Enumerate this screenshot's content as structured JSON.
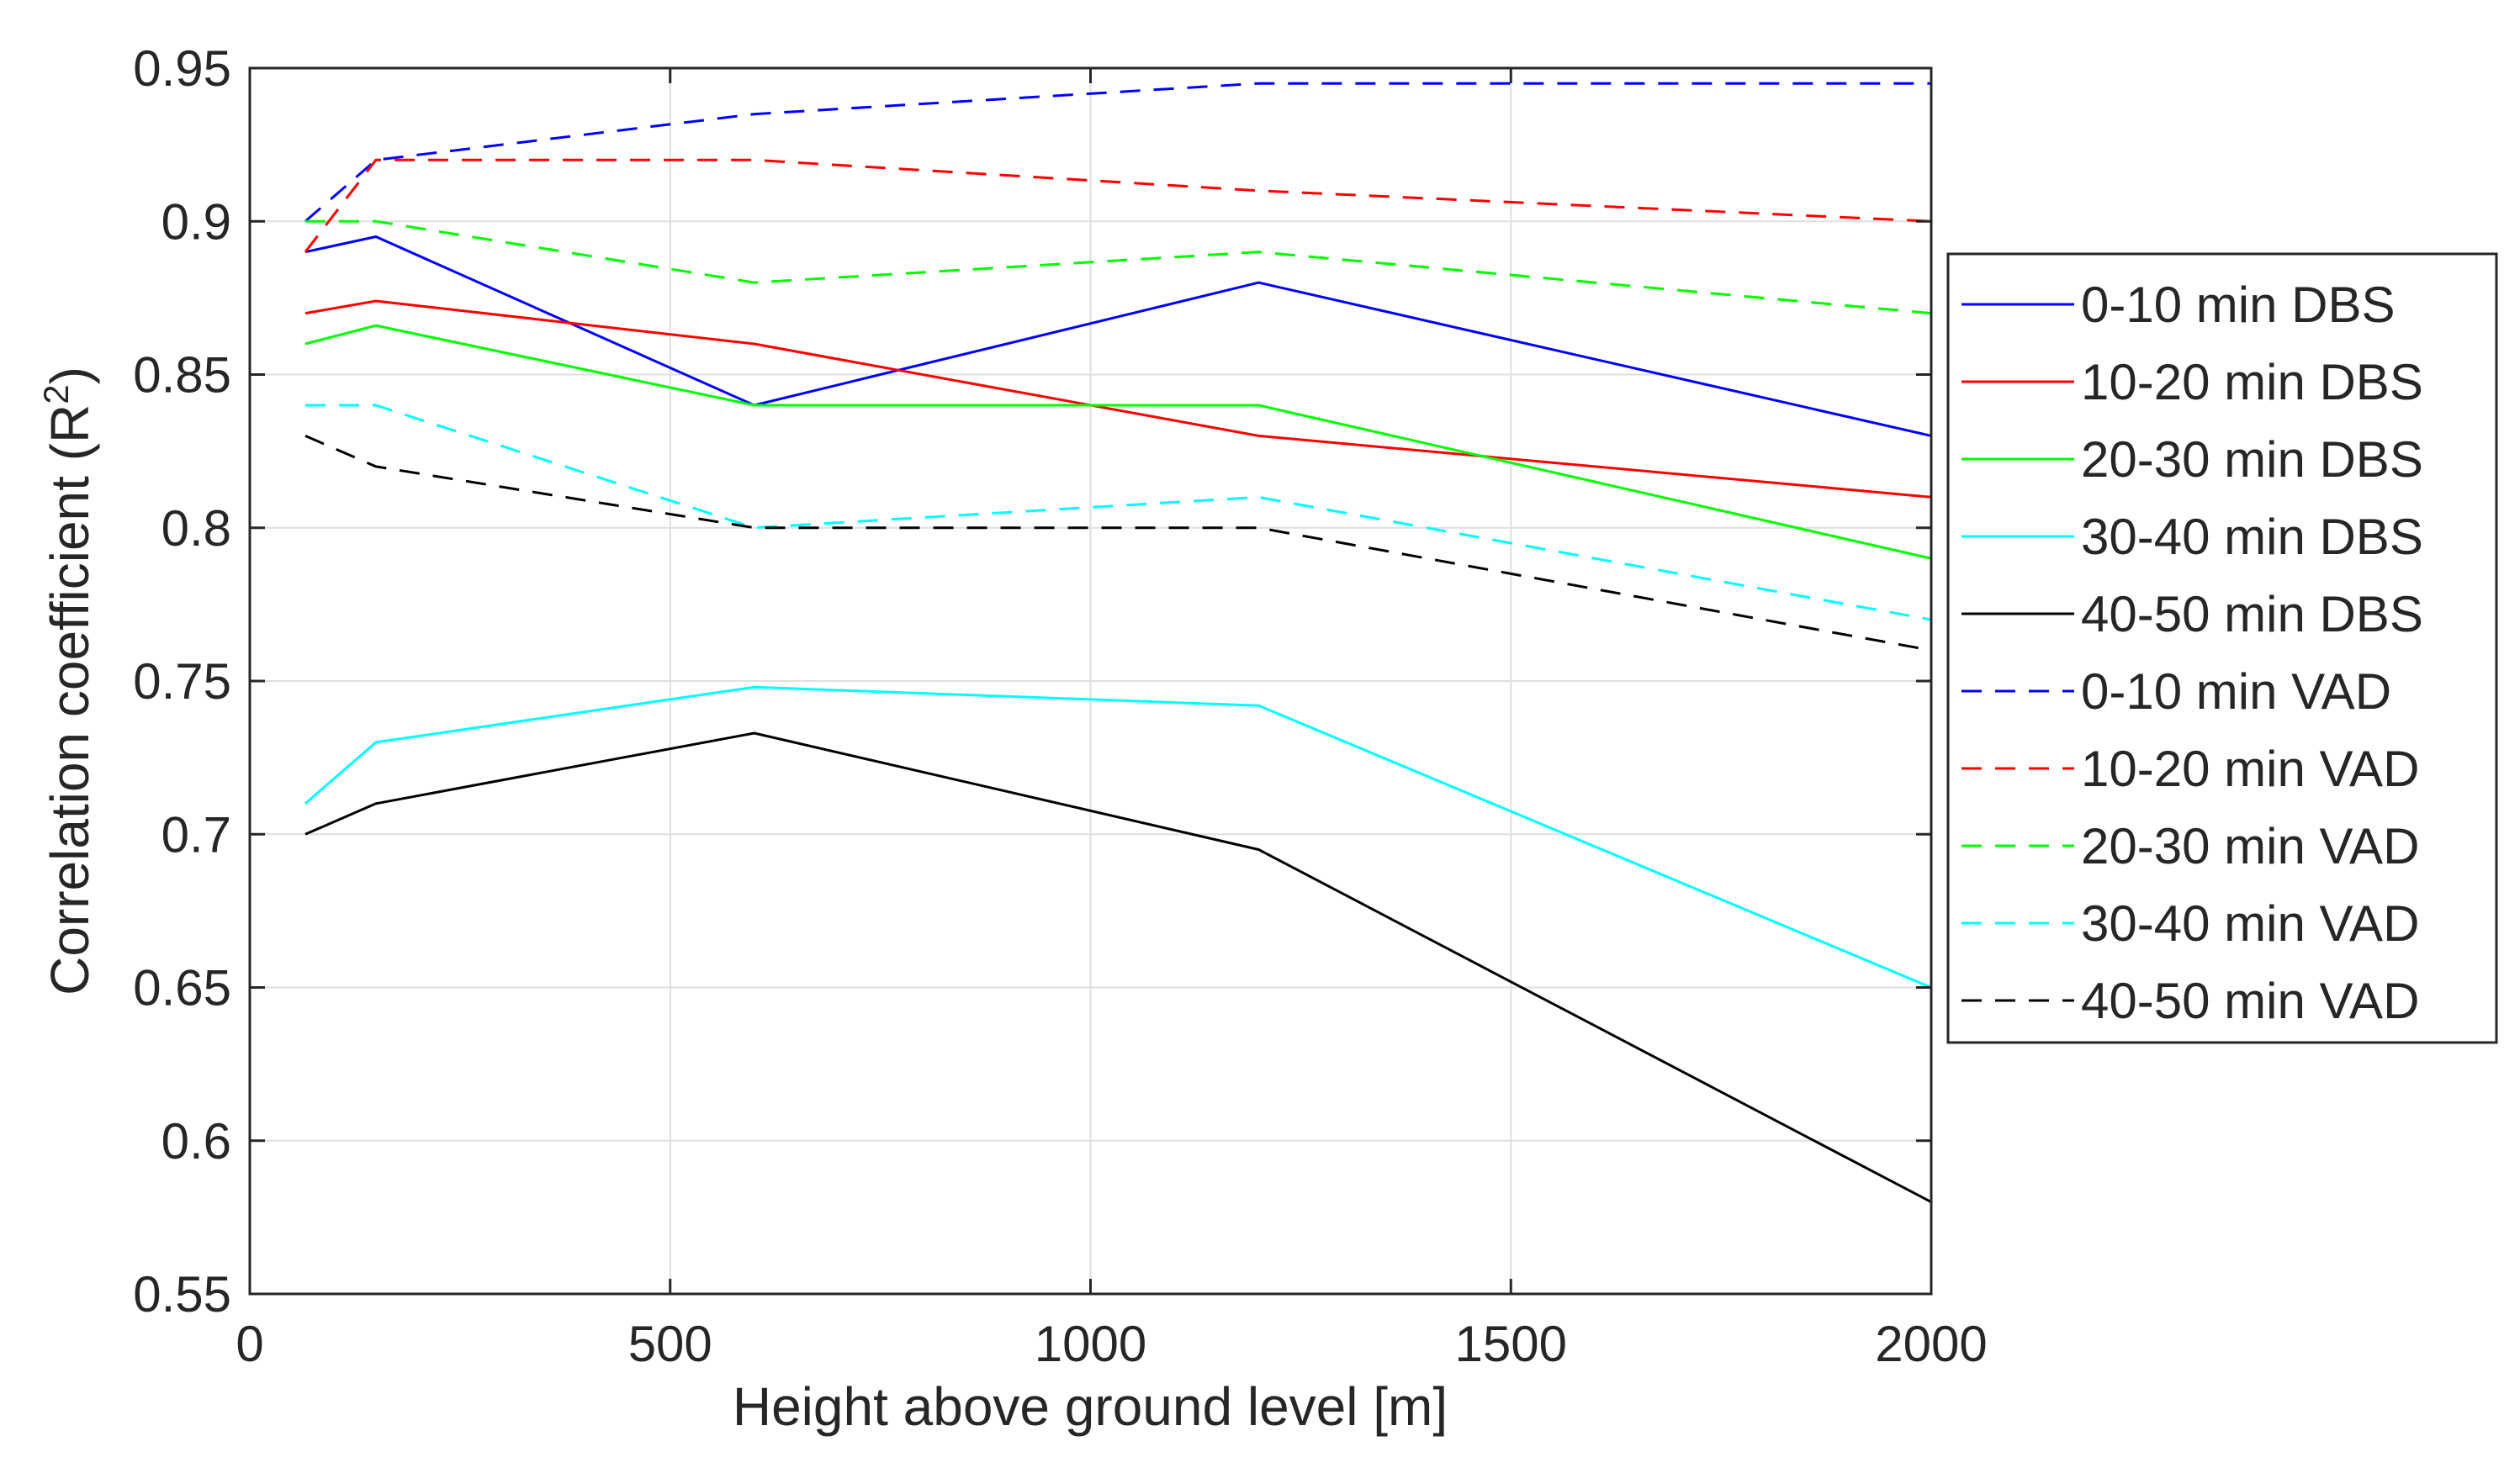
{
  "chart_data": {
    "type": "line",
    "title": "",
    "xlabel": "Height above ground level [m]",
    "ylabel_main": "Correlation coefficient (R",
    "ylabel_sup": "2",
    "ylabel_close": ")",
    "xlim": [
      0,
      2000
    ],
    "ylim": [
      0.55,
      0.95
    ],
    "xticks": [
      0,
      500,
      1000,
      1500,
      2000
    ],
    "xtick_labels": [
      "0",
      "500",
      "1000",
      "1500",
      "2000"
    ],
    "yticks": [
      0.55,
      0.6,
      0.65,
      0.7,
      0.75,
      0.8,
      0.85,
      0.9,
      0.95
    ],
    "ytick_labels": [
      "0.55",
      "0.6",
      "0.65",
      "0.7",
      "0.75",
      "0.8",
      "0.85",
      "0.9",
      "0.95"
    ],
    "grid": true,
    "legend_position": "right-outside",
    "x": [
      66,
      150,
      600,
      1200,
      2000
    ],
    "series": [
      {
        "name": "0-10 min DBS",
        "color": "#0000ff",
        "dash": "solid",
        "values": [
          0.89,
          0.895,
          0.84,
          0.88,
          0.83
        ]
      },
      {
        "name": "10-20 min DBS",
        "color": "#ff0000",
        "dash": "solid",
        "values": [
          0.87,
          0.874,
          0.86,
          0.83,
          0.81
        ]
      },
      {
        "name": "20-30 min DBS",
        "color": "#00ff00",
        "dash": "solid",
        "values": [
          0.86,
          0.866,
          0.84,
          0.84,
          0.79
        ]
      },
      {
        "name": "30-40 min DBS",
        "color": "#00ffff",
        "dash": "solid",
        "values": [
          0.71,
          0.73,
          0.748,
          0.742,
          0.65
        ]
      },
      {
        "name": "40-50 min DBS",
        "color": "#000000",
        "dash": "solid",
        "values": [
          0.7,
          0.71,
          0.733,
          0.695,
          0.58
        ]
      },
      {
        "name": "0-10 min VAD",
        "color": "#0000ff",
        "dash": "dashed",
        "values": [
          0.9,
          0.92,
          0.935,
          0.945,
          0.945
        ]
      },
      {
        "name": "10-20 min VAD",
        "color": "#ff0000",
        "dash": "dashed",
        "values": [
          0.89,
          0.92,
          0.92,
          0.91,
          0.9
        ]
      },
      {
        "name": "20-30 min VAD",
        "color": "#00ff00",
        "dash": "dashed",
        "values": [
          0.9,
          0.9,
          0.88,
          0.89,
          0.87
        ]
      },
      {
        "name": "30-40 min VAD",
        "color": "#00ffff",
        "dash": "dashed",
        "values": [
          0.84,
          0.84,
          0.8,
          0.81,
          0.77
        ]
      },
      {
        "name": "40-50 min VAD",
        "color": "#000000",
        "dash": "dashed",
        "values": [
          0.83,
          0.82,
          0.8,
          0.8,
          0.76
        ]
      }
    ]
  }
}
